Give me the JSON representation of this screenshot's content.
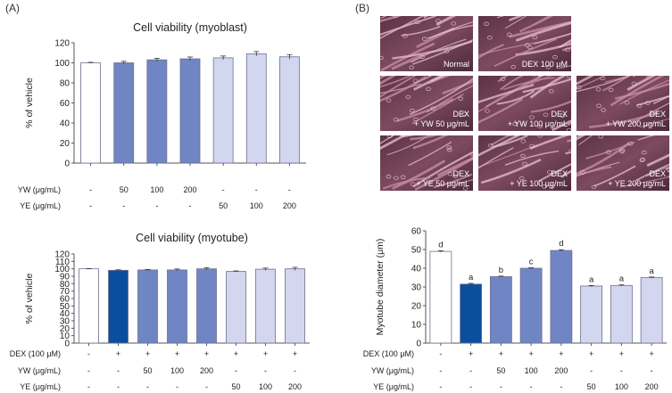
{
  "panel_a_label": "(A)",
  "panel_b_label": "(B)",
  "colors": {
    "vehicle": "#ffffff",
    "dex": "#0a4f9e",
    "yw": "#7086c4",
    "ye": "#d2d6ef"
  },
  "chart_data": [
    {
      "id": "myoblast",
      "type": "bar",
      "title": "Cell viability (myoblast)",
      "ylabel": "% of vehicle",
      "ylim": [
        0,
        120
      ],
      "yticks": [
        "0",
        "20",
        "40",
        "60",
        "80",
        "100",
        "120"
      ],
      "values": [
        100,
        100,
        103,
        104,
        105,
        109,
        106
      ],
      "errors": [
        0.5,
        1.5,
        1.5,
        1.8,
        1.8,
        2.2,
        2.2
      ],
      "fills": [
        "vehicle",
        "yw",
        "yw",
        "yw",
        "ye",
        "ye",
        "ye"
      ],
      "rows": [
        {
          "label": "YW (μg/mL)",
          "cells": [
            "-",
            "50",
            "100",
            "200",
            "-",
            "-",
            "-"
          ]
        },
        {
          "label": "YE (μg/mL)",
          "cells": [
            "-",
            "-",
            "-",
            "-",
            "50",
            "100",
            "200"
          ]
        }
      ]
    },
    {
      "id": "myotube",
      "type": "bar",
      "title": "Cell viability (myotube)",
      "ylabel": "% of vehicle",
      "ylim": [
        0,
        120
      ],
      "yticks": [
        "0",
        "10",
        "20",
        "30",
        "40",
        "50",
        "60",
        "70",
        "80",
        "90",
        "100",
        "110",
        "120"
      ],
      "values": [
        100,
        98,
        98.5,
        98.5,
        100,
        96.5,
        99.5,
        100
      ],
      "errors": [
        0.4,
        0.7,
        0.7,
        1.3,
        1.5,
        0.7,
        1.5,
        2
      ],
      "fills": [
        "vehicle",
        "dex",
        "yw",
        "yw",
        "yw",
        "ye",
        "ye",
        "ye"
      ],
      "rows": [
        {
          "label": "DEX (100 μM)",
          "cells": [
            "-",
            "+",
            "+",
            "+",
            "+",
            "+",
            "+",
            "+"
          ]
        },
        {
          "label": "YW (μg/mL)",
          "cells": [
            "-",
            "-",
            "50",
            "100",
            "200",
            "-",
            "-",
            "-"
          ]
        },
        {
          "label": "YE (μg/mL)",
          "cells": [
            "-",
            "-",
            "-",
            "-",
            "-",
            "50",
            "100",
            "200"
          ]
        }
      ]
    },
    {
      "id": "diameter",
      "type": "bar",
      "title": "",
      "ylabel": "Myotube diameter (μm)",
      "ylim": [
        0,
        60
      ],
      "yticks": [
        "0",
        "10",
        "20",
        "30",
        "40",
        "50",
        "60"
      ],
      "values": [
        49,
        31.5,
        35.5,
        40,
        49.5,
        30.5,
        30.8,
        35
      ],
      "errors": [
        0.4,
        0.4,
        0.3,
        0.3,
        0.4,
        0.3,
        0.3,
        0.3
      ],
      "letters": [
        "d",
        "a",
        "b",
        "c",
        "d",
        "a",
        "a",
        "a"
      ],
      "fills": [
        "vehicle",
        "dex",
        "yw",
        "yw",
        "yw",
        "ye",
        "ye",
        "ye"
      ],
      "rows": [
        {
          "label": "DEX (100 μM)",
          "cells": [
            "-",
            "+",
            "+",
            "+",
            "+",
            "+",
            "+",
            "+"
          ]
        },
        {
          "label": "YW (μg/mL)",
          "cells": [
            "-",
            "-",
            "50",
            "100",
            "200",
            "-",
            "-",
            "-"
          ]
        },
        {
          "label": "YE (μg/mL)",
          "cells": [
            "-",
            "-",
            "-",
            "-",
            "-",
            "50",
            "100",
            "200"
          ]
        }
      ]
    }
  ],
  "micrographs": [
    {
      "label": "Normal",
      "present": true
    },
    {
      "label": "DEX 100 μM",
      "present": true
    },
    {
      "label": "",
      "present": false
    },
    {
      "label": "DEX\n+ YW 50 μg/mL",
      "present": true
    },
    {
      "label": "DEX\n+ YW 100 μg/mL",
      "present": true
    },
    {
      "label": "DEX\n+ YW 200 μg/mL",
      "present": true
    },
    {
      "label": "DEX\n+ YE 50 μg/mL",
      "present": true
    },
    {
      "label": "DEX\n+ YE 100 μg/mL",
      "present": true
    },
    {
      "label": "DEX\n+ YE 200 μg/mL",
      "present": true
    }
  ]
}
